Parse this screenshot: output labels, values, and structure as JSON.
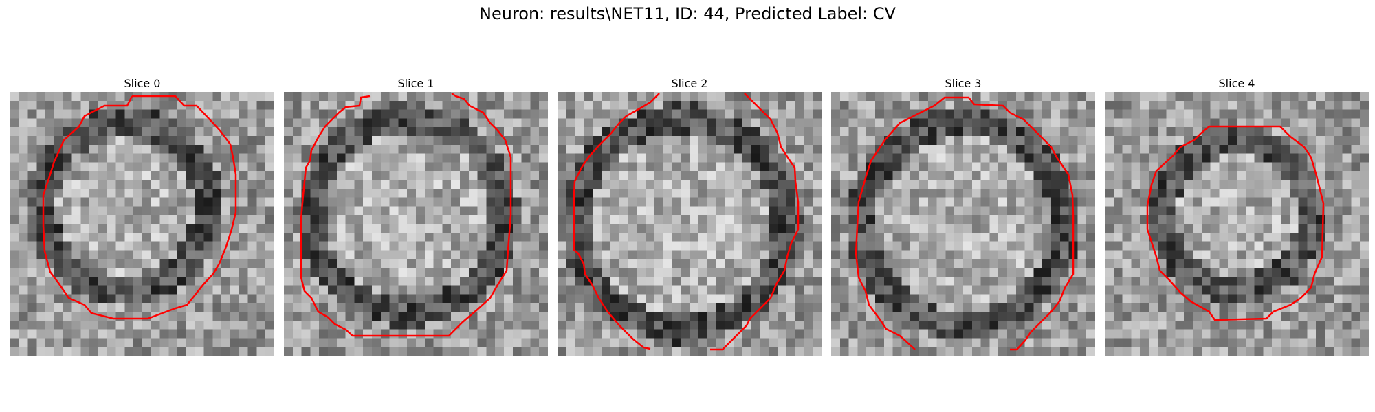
{
  "figure": {
    "title": "Neuron: results\\NET11, ID: 44, Predicted Label: CV"
  },
  "contour_color": "#ff0000",
  "slices": [
    {
      "title": "Slice 0"
    },
    {
      "title": "Slice 1"
    },
    {
      "title": "Slice 2"
    },
    {
      "title": "Slice 3"
    },
    {
      "title": "Slice 4"
    }
  ]
}
